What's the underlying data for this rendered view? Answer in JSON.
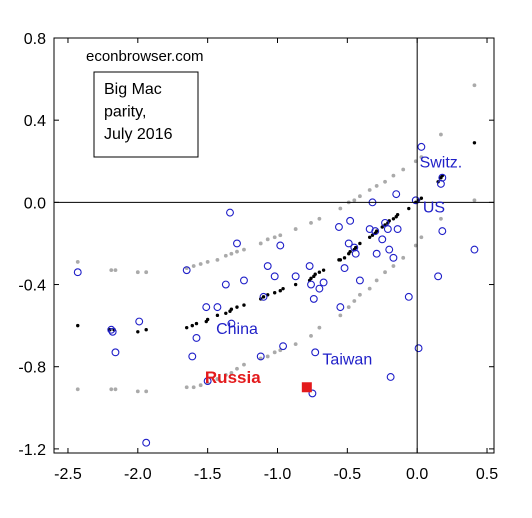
{
  "chart_data": {
    "type": "scatter",
    "title": "",
    "xlabel": "",
    "ylabel": "",
    "xlim": [
      -2.6,
      0.55
    ],
    "ylim": [
      -1.22,
      0.8
    ],
    "xticks": [
      -2.5,
      -2.0,
      -1.5,
      -1.0,
      -0.5,
      0.0,
      0.5
    ],
    "xtick_labels": [
      "-2.5",
      "-2.0",
      "-1.5",
      "-1.0",
      "-0.5",
      "0.0",
      "0.5"
    ],
    "yticks": [
      0.8,
      0.4,
      0.0,
      -0.4,
      -0.8,
      -1.2
    ],
    "ytick_labels": [
      "0.8",
      "0.4",
      "0.0",
      "-0.4",
      "-0.8",
      "-1.2"
    ],
    "grid": false,
    "reference_lines": {
      "x": 0.0,
      "y": 0.0
    },
    "watermark": "econbrowser.com",
    "legend_box": [
      "Big Mac",
      "parity,",
      "July 2016"
    ],
    "annotations": [
      {
        "text": "Switz.",
        "x": 0.17,
        "y": 0.17,
        "color": "#1f1fc8",
        "weight": "normal"
      },
      {
        "text": "US",
        "x": 0.12,
        "y": -0.05,
        "color": "#1f1fc8",
        "weight": "normal"
      },
      {
        "text": "China",
        "x": -1.29,
        "y": -0.64,
        "color": "#1f1fc8",
        "weight": "normal"
      },
      {
        "text": "Taiwan",
        "x": -0.5,
        "y": -0.79,
        "color": "#1f1fc8",
        "weight": "normal"
      },
      {
        "text": "Russia",
        "x": -1.32,
        "y": -0.88,
        "color": "#e31a1c",
        "weight": "bold"
      }
    ],
    "colors": {
      "observed": "#1f1fc8",
      "fit": "#000000",
      "band": "#aaaaaa",
      "russia": "#e31a1c"
    },
    "series": [
      {
        "marker": "open-circle",
        "color": "#1f1fc8",
        "points": [
          [
            -2.43,
            -0.34
          ],
          [
            -2.19,
            -0.62
          ],
          [
            -2.18,
            -0.63
          ],
          [
            -2.16,
            -0.73
          ],
          [
            -1.99,
            -0.58
          ],
          [
            -1.94,
            -1.17
          ],
          [
            -1.65,
            -0.33
          ],
          [
            -1.61,
            -0.75
          ],
          [
            -1.58,
            -0.66
          ],
          [
            -1.51,
            -0.51
          ],
          [
            -1.5,
            -0.87
          ],
          [
            -1.43,
            -0.51
          ],
          [
            -1.37,
            -0.4
          ],
          [
            -1.34,
            -0.05
          ],
          [
            -1.33,
            -0.59
          ],
          [
            -1.29,
            -0.2
          ],
          [
            -1.24,
            -0.38
          ],
          [
            -1.12,
            -0.75
          ],
          [
            -1.1,
            -0.46
          ],
          [
            -1.07,
            -0.31
          ],
          [
            -1.02,
            -0.36
          ],
          [
            -0.98,
            -0.21
          ],
          [
            -0.96,
            -0.7
          ],
          [
            -0.87,
            -0.36
          ],
          [
            -0.77,
            -0.31
          ],
          [
            -0.76,
            -0.4
          ],
          [
            -0.75,
            -0.93
          ],
          [
            -0.74,
            -0.47
          ],
          [
            -0.73,
            -0.73
          ],
          [
            -0.7,
            -0.42
          ],
          [
            -0.67,
            -0.39
          ],
          [
            -0.56,
            -0.12
          ],
          [
            -0.55,
            -0.51
          ],
          [
            -0.52,
            -0.32
          ],
          [
            -0.49,
            -0.2
          ],
          [
            -0.48,
            -0.09
          ],
          [
            -0.45,
            -0.22
          ],
          [
            -0.44,
            -0.25
          ],
          [
            -0.41,
            -0.38
          ],
          [
            -0.34,
            -0.13
          ],
          [
            -0.32,
            0.0
          ],
          [
            -0.3,
            -0.14
          ],
          [
            -0.29,
            -0.25
          ],
          [
            -0.25,
            -0.18
          ],
          [
            -0.23,
            -0.1
          ],
          [
            -0.21,
            -0.13
          ],
          [
            -0.2,
            -0.23
          ],
          [
            -0.19,
            -0.85
          ],
          [
            -0.17,
            -0.27
          ],
          [
            -0.15,
            0.04
          ],
          [
            -0.14,
            -0.13
          ],
          [
            -0.06,
            -0.46
          ],
          [
            -0.01,
            0.01
          ],
          [
            0.01,
            -0.71
          ],
          [
            0.03,
            0.27
          ],
          [
            0.15,
            -0.36
          ],
          [
            0.17,
            0.09
          ],
          [
            0.18,
            -0.14
          ],
          [
            0.41,
            -0.23
          ],
          [
            0.18,
            0.12
          ]
        ]
      },
      {
        "marker": "dot",
        "color": "#000000",
        "points": [
          [
            -2.43,
            -0.6
          ],
          [
            -2.2,
            -0.62
          ],
          [
            -2.17,
            -0.62
          ],
          [
            -2.0,
            -0.63
          ],
          [
            -1.94,
            -0.62
          ],
          [
            -1.65,
            -0.61
          ],
          [
            -1.61,
            -0.6
          ],
          [
            -1.58,
            -0.59
          ],
          [
            -1.51,
            -0.58
          ],
          [
            -1.5,
            -0.57
          ],
          [
            -1.43,
            -0.55
          ],
          [
            -1.37,
            -0.54
          ],
          [
            -1.34,
            -0.53
          ],
          [
            -1.33,
            -0.52
          ],
          [
            -1.29,
            -0.51
          ],
          [
            -1.24,
            -0.5
          ],
          [
            -1.12,
            -0.47
          ],
          [
            -1.1,
            -0.46
          ],
          [
            -1.07,
            -0.45
          ],
          [
            -1.02,
            -0.44
          ],
          [
            -0.98,
            -0.43
          ],
          [
            -0.96,
            -0.42
          ],
          [
            -0.87,
            -0.4
          ],
          [
            -0.77,
            -0.38
          ],
          [
            -0.76,
            -0.37
          ],
          [
            -0.74,
            -0.36
          ],
          [
            -0.73,
            -0.35
          ],
          [
            -0.7,
            -0.34
          ],
          [
            -0.67,
            -0.33
          ],
          [
            -0.56,
            -0.28
          ],
          [
            -0.55,
            -0.28
          ],
          [
            -0.52,
            -0.27
          ],
          [
            -0.49,
            -0.25
          ],
          [
            -0.48,
            -0.24
          ],
          [
            -0.45,
            -0.23
          ],
          [
            -0.44,
            -0.22
          ],
          [
            -0.41,
            -0.2
          ],
          [
            -0.34,
            -0.17
          ],
          [
            -0.32,
            -0.16
          ],
          [
            -0.3,
            -0.15
          ],
          [
            -0.29,
            -0.14
          ],
          [
            -0.25,
            -0.12
          ],
          [
            -0.23,
            -0.11
          ],
          [
            -0.21,
            -0.1
          ],
          [
            -0.2,
            -0.09
          ],
          [
            -0.17,
            -0.08
          ],
          [
            -0.15,
            -0.07
          ],
          [
            -0.14,
            -0.06
          ],
          [
            -0.06,
            -0.03
          ],
          [
            -0.01,
            0.0
          ],
          [
            0.01,
            0.01
          ],
          [
            0.03,
            0.02
          ],
          [
            0.15,
            0.1
          ],
          [
            0.17,
            0.12
          ],
          [
            0.18,
            0.13
          ],
          [
            0.41,
            0.29
          ]
        ]
      },
      {
        "marker": "grey-dot",
        "color": "#aaaaaa",
        "points": [
          [
            -2.43,
            -0.29
          ],
          [
            -2.19,
            -0.33
          ],
          [
            -2.16,
            -0.33
          ],
          [
            -2.0,
            -0.34
          ],
          [
            -1.94,
            -0.34
          ],
          [
            -1.65,
            -0.32
          ],
          [
            -1.6,
            -0.31
          ],
          [
            -1.55,
            -0.3
          ],
          [
            -1.5,
            -0.29
          ],
          [
            -1.43,
            -0.28
          ],
          [
            -1.37,
            -0.26
          ],
          [
            -1.33,
            -0.25
          ],
          [
            -1.29,
            -0.24
          ],
          [
            -1.24,
            -0.23
          ],
          [
            -1.12,
            -0.2
          ],
          [
            -1.07,
            -0.18
          ],
          [
            -1.02,
            -0.17
          ],
          [
            -0.98,
            -0.16
          ],
          [
            -0.87,
            -0.13
          ],
          [
            -0.76,
            -0.1
          ],
          [
            -0.7,
            -0.08
          ],
          [
            -0.55,
            -0.03
          ],
          [
            -0.49,
            0.0
          ],
          [
            -0.45,
            0.01
          ],
          [
            -0.41,
            0.03
          ],
          [
            -0.34,
            0.06
          ],
          [
            -0.29,
            0.08
          ],
          [
            -0.23,
            0.1
          ],
          [
            -0.17,
            0.13
          ],
          [
            -0.1,
            0.16
          ],
          [
            -0.01,
            0.2
          ],
          [
            0.03,
            0.22
          ],
          [
            0.17,
            0.33
          ],
          [
            0.41,
            0.57
          ],
          [
            -2.43,
            -0.91
          ],
          [
            -2.19,
            -0.91
          ],
          [
            -2.16,
            -0.91
          ],
          [
            -2.0,
            -0.92
          ],
          [
            -1.94,
            -0.92
          ],
          [
            -1.65,
            -0.9
          ],
          [
            -1.6,
            -0.9
          ],
          [
            -1.55,
            -0.89
          ],
          [
            -1.5,
            -0.88
          ],
          [
            -1.43,
            -0.86
          ],
          [
            -1.37,
            -0.84
          ],
          [
            -1.33,
            -0.83
          ],
          [
            -1.29,
            -0.81
          ],
          [
            -1.24,
            -0.79
          ],
          [
            -1.12,
            -0.76
          ],
          [
            -1.07,
            -0.75
          ],
          [
            -1.02,
            -0.73
          ],
          [
            -0.98,
            -0.72
          ],
          [
            -0.87,
            -0.69
          ],
          [
            -0.76,
            -0.65
          ],
          [
            -0.7,
            -0.61
          ],
          [
            -0.55,
            -0.55
          ],
          [
            -0.49,
            -0.51
          ],
          [
            -0.45,
            -0.48
          ],
          [
            -0.41,
            -0.45
          ],
          [
            -0.34,
            -0.42
          ],
          [
            -0.29,
            -0.38
          ],
          [
            -0.23,
            -0.34
          ],
          [
            -0.17,
            -0.31
          ],
          [
            -0.1,
            -0.27
          ],
          [
            -0.01,
            -0.21
          ],
          [
            0.03,
            -0.17
          ],
          [
            0.17,
            -0.08
          ],
          [
            0.41,
            0.01
          ]
        ]
      },
      {
        "marker": "square",
        "color": "#e31a1c",
        "points": [
          [
            -0.79,
            -0.9
          ]
        ]
      }
    ]
  }
}
